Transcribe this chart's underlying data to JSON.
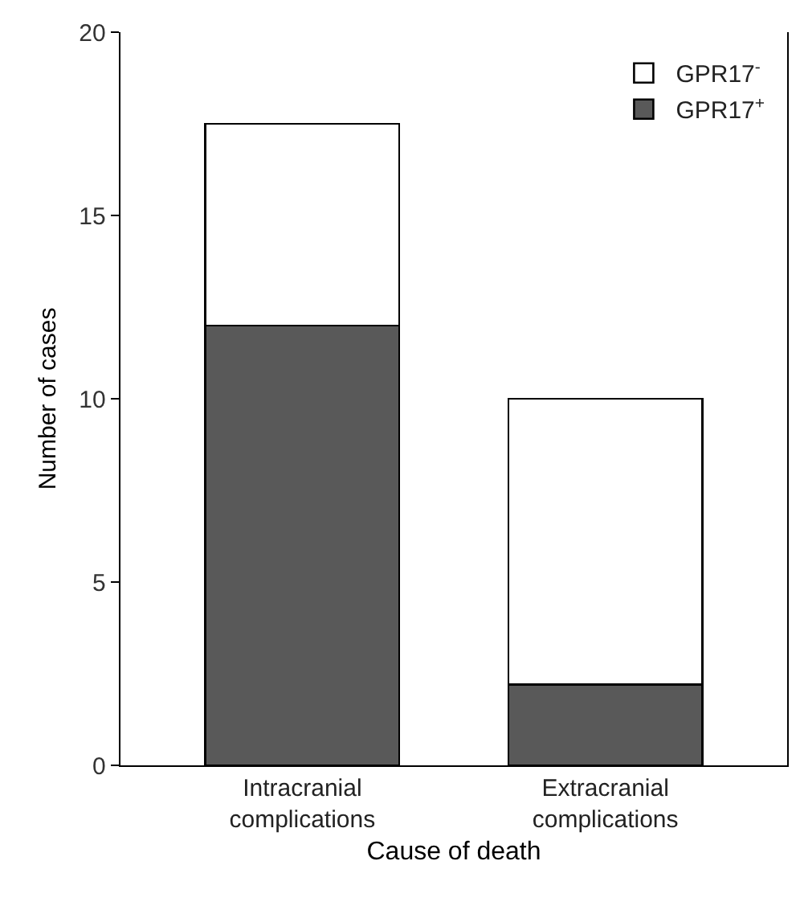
{
  "chart_data": {
    "type": "bar",
    "xlabel": "Cause of death",
    "ylabel": "Number of cases",
    "categories": [
      "Intracranial complications",
      "Extracranial complications"
    ],
    "stacked": true,
    "series": [
      {
        "name": "GPR17$^{+}$",
        "color": "#595959",
        "values": [
          12,
          2.2
        ]
      },
      {
        "name": "GPR17$^{-}$",
        "color": "#ffffff",
        "values": [
          5.5,
          7.8
        ]
      }
    ],
    "ylim": [
      0,
      20
    ],
    "yticks": [
      0,
      5,
      10,
      15,
      20
    ],
    "grid": false,
    "legend": "top right"
  }
}
